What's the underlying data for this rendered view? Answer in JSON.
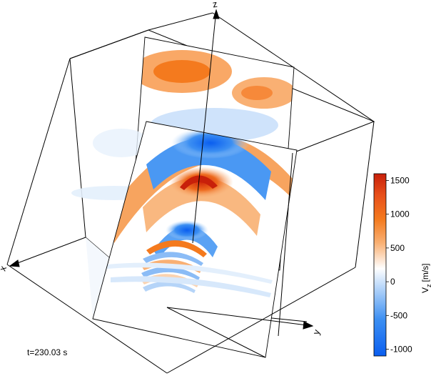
{
  "axes": {
    "x": "x",
    "y": "y",
    "z": "z"
  },
  "time_label": "t=230.03 s",
  "colorbar": {
    "label": "V",
    "label_sub": "z",
    "label_unit": "[m/s]",
    "ticks": [
      "1500",
      "1000",
      "500",
      "0",
      "-500",
      "-1000"
    ],
    "range": [
      -1100,
      1600
    ],
    "colors": {
      "top": "#c8200a",
      "upper": "#f47a1e",
      "mid": "#ffffff",
      "lower": "#2f86f0",
      "bottom": "#0a5ef0"
    }
  }
}
